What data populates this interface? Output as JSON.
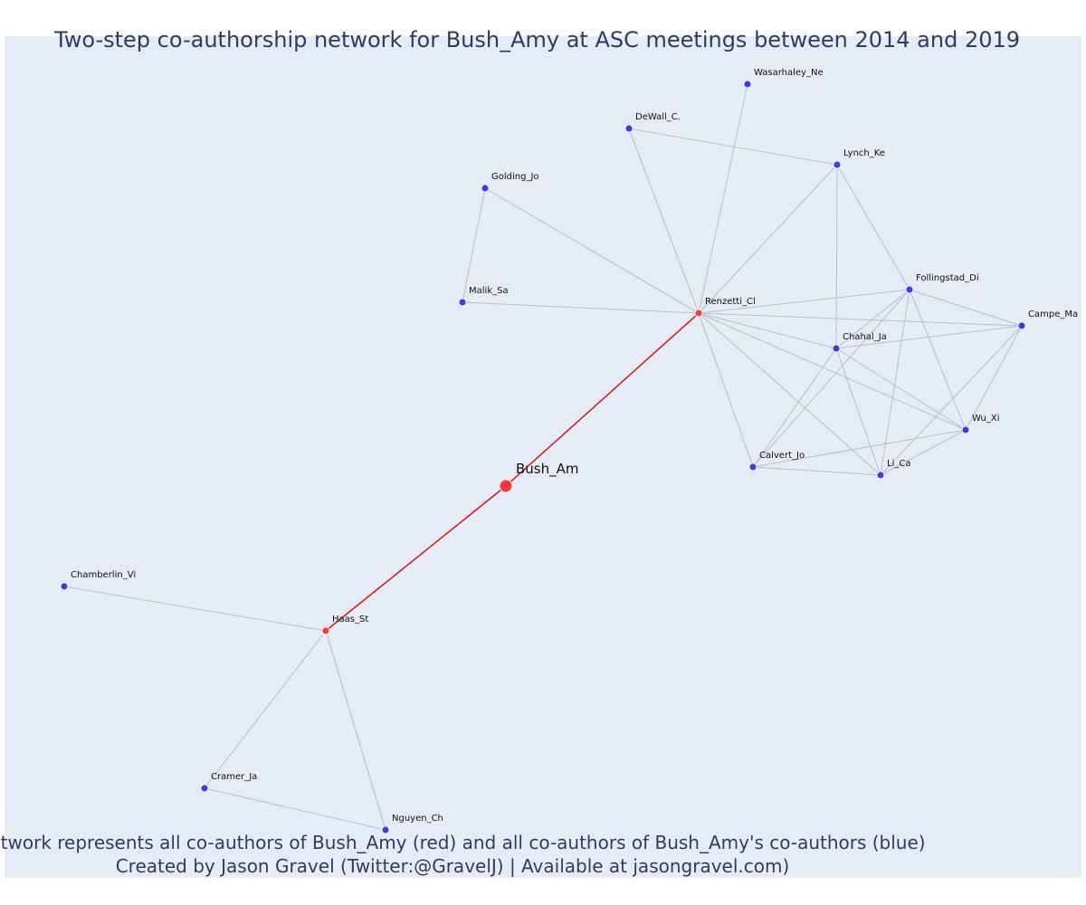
{
  "title": "Two-step co-authorship network for Bush_Amy at ASC meetings between 2014 and 2019",
  "caption_lines": [
    "Network represents all co-authors of Bush_Amy (red) and all co-authors of Bush_Amy's co-authors (blue)",
    "Created by Jason Gravel (Twitter:@GravelJ) | Available at jasongravel.com)"
  ],
  "colors": {
    "background": "#e5ecf6",
    "focal": "#ef3b3b",
    "coauthor": "#ef3b3b",
    "second_degree": "#3c3ce6",
    "edge": "#b9bdcc",
    "focal_edge": "#e01010",
    "title_text": "#2a3f5f"
  },
  "nodes": [
    {
      "id": "Bush_Am",
      "label": "Bush_Am",
      "group": "focal"
    },
    {
      "id": "Renzetti_Cl",
      "label": "Renzetti_Cl",
      "group": "coauthor"
    },
    {
      "id": "Haas_St",
      "label": "Haas_St",
      "group": "coauthor"
    },
    {
      "id": "Wasarhaley_Ne",
      "label": "Wasarhaley_Ne",
      "group": "second_degree"
    },
    {
      "id": "DeWall_C.",
      "label": "DeWall_C.",
      "group": "second_degree"
    },
    {
      "id": "Lynch_Ke",
      "label": "Lynch_Ke",
      "group": "second_degree"
    },
    {
      "id": "Golding_Jo",
      "label": "Golding_Jo",
      "group": "second_degree"
    },
    {
      "id": "Malik_Sa",
      "label": "Malik_Sa",
      "group": "second_degree"
    },
    {
      "id": "Follingstad_Di",
      "label": "Follingstad_Di",
      "group": "second_degree"
    },
    {
      "id": "Campe_Ma",
      "label": "Campe_Ma",
      "group": "second_degree"
    },
    {
      "id": "Chahal_Ja",
      "label": "Chahal_Ja",
      "group": "second_degree"
    },
    {
      "id": "Wu_Xi",
      "label": "Wu_Xi",
      "group": "second_degree"
    },
    {
      "id": "Calvert_Jo",
      "label": "Calvert_Jo",
      "group": "second_degree"
    },
    {
      "id": "Li_Ca",
      "label": "Li_Ca",
      "group": "second_degree"
    },
    {
      "id": "Chamberlin_Vi",
      "label": "Chamberlin_Vi",
      "group": "second_degree"
    },
    {
      "id": "Cramer_Ja",
      "label": "Cramer_Ja",
      "group": "second_degree"
    },
    {
      "id": "Nguyen_Ch",
      "label": "Nguyen_Ch",
      "group": "second_degree"
    }
  ],
  "edges": [
    [
      "Bush_Am",
      "Renzetti_Cl"
    ],
    [
      "Bush_Am",
      "Haas_St"
    ],
    [
      "Renzetti_Cl",
      "Wasarhaley_Ne"
    ],
    [
      "Renzetti_Cl",
      "DeWall_C."
    ],
    [
      "Renzetti_Cl",
      "Lynch_Ke"
    ],
    [
      "Renzetti_Cl",
      "Golding_Jo"
    ],
    [
      "Renzetti_Cl",
      "Malik_Sa"
    ],
    [
      "Renzetti_Cl",
      "Follingstad_Di"
    ],
    [
      "Renzetti_Cl",
      "Campe_Ma"
    ],
    [
      "Renzetti_Cl",
      "Chahal_Ja"
    ],
    [
      "Renzetti_Cl",
      "Wu_Xi"
    ],
    [
      "Renzetti_Cl",
      "Calvert_Jo"
    ],
    [
      "Renzetti_Cl",
      "Li_Ca"
    ],
    [
      "DeWall_C.",
      "Lynch_Ke"
    ],
    [
      "Golding_Jo",
      "Malik_Sa"
    ],
    [
      "Lynch_Ke",
      "Follingstad_Di"
    ],
    [
      "Lynch_Ke",
      "Chahal_Ja"
    ],
    [
      "Follingstad_Di",
      "Campe_Ma"
    ],
    [
      "Follingstad_Di",
      "Chahal_Ja"
    ],
    [
      "Follingstad_Di",
      "Wu_Xi"
    ],
    [
      "Follingstad_Di",
      "Calvert_Jo"
    ],
    [
      "Follingstad_Di",
      "Li_Ca"
    ],
    [
      "Campe_Ma",
      "Chahal_Ja"
    ],
    [
      "Campe_Ma",
      "Wu_Xi"
    ],
    [
      "Campe_Ma",
      "Li_Ca"
    ],
    [
      "Chahal_Ja",
      "Wu_Xi"
    ],
    [
      "Chahal_Ja",
      "Calvert_Jo"
    ],
    [
      "Chahal_Ja",
      "Li_Ca"
    ],
    [
      "Wu_Xi",
      "Calvert_Jo"
    ],
    [
      "Wu_Xi",
      "Li_Ca"
    ],
    [
      "Calvert_Jo",
      "Li_Ca"
    ],
    [
      "Haas_St",
      "Chamberlin_Vi"
    ],
    [
      "Haas_St",
      "Cramer_Ja"
    ],
    [
      "Haas_St",
      "Nguyen_Ch"
    ],
    [
      "Cramer_Ja",
      "Nguyen_Ch"
    ]
  ]
}
